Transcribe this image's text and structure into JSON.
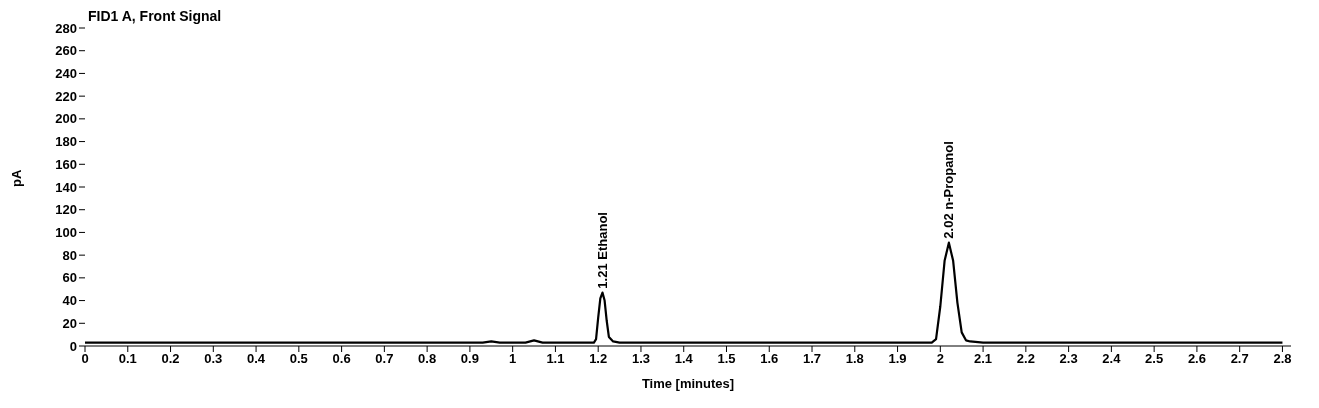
{
  "chart_data": {
    "type": "line",
    "title": "FID1 A, Front Signal",
    "xlabel": "Time [minutes]",
    "ylabel": "pA",
    "x": [
      0,
      0.5,
      0.93,
      0.95,
      0.97,
      1.03,
      1.05,
      1.07,
      1.19,
      1.195,
      1.2,
      1.205,
      1.21,
      1.215,
      1.22,
      1.225,
      1.235,
      1.25,
      1.98,
      1.99,
      2.0,
      2.01,
      2.02,
      2.03,
      2.04,
      2.05,
      2.06,
      2.07,
      2.1,
      2.8
    ],
    "series": [
      {
        "color": "#000000",
        "values": [
          3,
          3,
          3,
          4,
          3,
          3,
          5,
          3,
          3,
          6,
          25,
          42,
          47,
          40,
          22,
          8,
          4,
          3,
          3,
          6,
          35,
          75,
          91,
          75,
          38,
          12,
          5,
          4,
          3,
          3
        ]
      }
    ],
    "xlim": [
      0,
      2.82
    ],
    "xticks": [
      0,
      0.1,
      0.2,
      0.3,
      0.4,
      0.5,
      0.6,
      0.7,
      0.8,
      0.9,
      1,
      1.1,
      1.2,
      1.3,
      1.4,
      1.5,
      1.6,
      1.7,
      1.8,
      1.9,
      2,
      2.1,
      2.2,
      2.3,
      2.4,
      2.5,
      2.6,
      2.7,
      2.8
    ],
    "ylim": [
      0,
      280
    ],
    "yticks": [
      0,
      20,
      40,
      60,
      80,
      100,
      120,
      140,
      160,
      180,
      200,
      220,
      240,
      260,
      280
    ],
    "marker": "none",
    "line_style": "solid",
    "legend": false,
    "grid": false,
    "annotations": [
      {
        "text": "1.21 Ethanol",
        "x": 1.21,
        "y": 47
      },
      {
        "text": "2.02 n-Propanol",
        "x": 2.02,
        "y": 91
      }
    ]
  }
}
